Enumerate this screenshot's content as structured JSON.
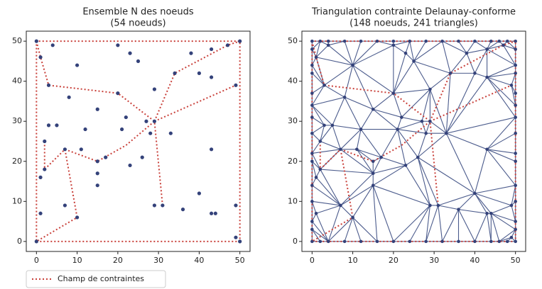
{
  "chart_data": [
    {
      "type": "scatter",
      "title": "Ensemble N des noeuds",
      "subtitle": "(54 noeuds)",
      "x": [
        0,
        50,
        0,
        50,
        1,
        4,
        3,
        10,
        20,
        23,
        25,
        2,
        2,
        1,
        1,
        3,
        5,
        8,
        7,
        11,
        12,
        15,
        15,
        15,
        15,
        17,
        20,
        21,
        22,
        23,
        26,
        27,
        28,
        29,
        29,
        29,
        31,
        33,
        34,
        36,
        38,
        40,
        40,
        43,
        43,
        43,
        43,
        44,
        47,
        49,
        49,
        49,
        10,
        7
      ],
      "y": [
        50,
        50,
        0,
        0,
        46,
        49,
        39,
        44,
        49,
        47,
        45,
        25,
        18,
        16,
        7,
        29,
        29,
        36,
        23,
        23,
        28,
        33,
        20,
        17,
        14,
        21,
        37,
        28,
        31,
        19,
        21,
        30,
        27,
        38,
        30,
        9,
        9,
        27,
        42,
        8,
        47,
        42,
        12,
        48,
        41,
        23,
        7,
        7,
        49,
        39,
        9,
        1,
        6,
        9
      ],
      "constraints": [
        {
          "x": [
            0,
            50,
            50,
            0,
            0
          ],
          "y": [
            0,
            0,
            50,
            50,
            0
          ]
        },
        {
          "x": [
            0,
            1,
            3,
            20,
            29,
            31
          ],
          "y": [
            50,
            46,
            39,
            37,
            30,
            9
          ]
        },
        {
          "x": [
            29,
            34,
            47,
            50
          ],
          "y": [
            30,
            42,
            49,
            50
          ]
        },
        {
          "x": [
            29,
            49
          ],
          "y": [
            30,
            39
          ]
        },
        {
          "x": [
            2,
            2,
            7,
            10,
            0
          ],
          "y": [
            25,
            18,
            23,
            6,
            0
          ]
        },
        {
          "x": [
            7,
            15,
            22,
            29
          ],
          "y": [
            23,
            20,
            24,
            30
          ]
        }
      ],
      "legend": "Champ de contraintes",
      "legend_loc": "lower left outside",
      "xlim": [
        -2.5,
        52.5
      ],
      "ylim": [
        -2.5,
        52.5
      ],
      "xticks": [
        0,
        10,
        20,
        30,
        40,
        50
      ],
      "yticks": [
        0,
        10,
        20,
        30,
        40,
        50
      ],
      "color": "#34427a",
      "constraint_color": "#c9403a",
      "triangulate": false
    },
    {
      "type": "scatter",
      "title": "Triangulation contrainte Delaunay-conforme",
      "subtitle": "(148 noeuds, 241 triangles)",
      "x": [
        0,
        50,
        0,
        50,
        1,
        4,
        3,
        10,
        20,
        23,
        25,
        2,
        2,
        1,
        1,
        3,
        5,
        8,
        7,
        11,
        12,
        15,
        15,
        15,
        15,
        17,
        20,
        21,
        22,
        23,
        26,
        27,
        28,
        29,
        29,
        29,
        31,
        33,
        34,
        36,
        38,
        40,
        40,
        43,
        43,
        43,
        43,
        44,
        47,
        49,
        49,
        49,
        10,
        7,
        2,
        4,
        8,
        12,
        16,
        20,
        24,
        28,
        32,
        36,
        40,
        44,
        46,
        48,
        2,
        4,
        8,
        12,
        16,
        20,
        24,
        28,
        32,
        36,
        40,
        44,
        46,
        48,
        0,
        0,
        0,
        0,
        0,
        0,
        0,
        0,
        0,
        0,
        0,
        0,
        0,
        50,
        50,
        50,
        50,
        50,
        50,
        50,
        50,
        50,
        50,
        50,
        50,
        50
      ],
      "y": [
        50,
        50,
        0,
        0,
        46,
        49,
        39,
        44,
        49,
        47,
        45,
        25,
        18,
        16,
        7,
        29,
        29,
        36,
        23,
        23,
        28,
        33,
        20,
        17,
        14,
        21,
        37,
        28,
        31,
        19,
        21,
        30,
        27,
        38,
        30,
        9,
        9,
        27,
        42,
        8,
        47,
        42,
        12,
        48,
        41,
        23,
        7,
        7,
        49,
        39,
        9,
        1,
        6,
        9,
        0,
        0,
        0,
        0,
        0,
        0,
        0,
        0,
        0,
        0,
        0,
        0,
        0,
        0,
        50,
        50,
        50,
        50,
        50,
        50,
        50,
        50,
        50,
        50,
        50,
        50,
        50,
        50,
        3,
        5,
        10,
        14,
        20,
        22,
        27,
        31,
        34,
        37,
        42,
        44,
        48,
        3,
        5,
        10,
        14,
        20,
        22,
        27,
        31,
        34,
        37,
        42,
        44,
        48
      ],
      "constraints": [
        {
          "x": [
            0,
            50,
            50,
            0,
            0
          ],
          "y": [
            0,
            0,
            50,
            50,
            0
          ]
        },
        {
          "x": [
            0,
            1,
            3,
            20,
            29,
            31
          ],
          "y": [
            50,
            46,
            39,
            37,
            30,
            9
          ]
        },
        {
          "x": [
            29,
            34,
            47,
            50
          ],
          "y": [
            30,
            42,
            49,
            50
          ]
        },
        {
          "x": [
            29,
            49
          ],
          "y": [
            30,
            39
          ]
        },
        {
          "x": [
            2,
            2,
            7,
            10,
            0
          ],
          "y": [
            25,
            18,
            23,
            6,
            0
          ]
        },
        {
          "x": [
            7,
            15,
            22,
            29
          ],
          "y": [
            23,
            20,
            24,
            30
          ]
        }
      ],
      "xlim": [
        -2.5,
        52.5
      ],
      "ylim": [
        -2.5,
        52.5
      ],
      "xticks": [
        0,
        10,
        20,
        30,
        40,
        50
      ],
      "yticks": [
        0,
        10,
        20,
        30,
        40,
        50
      ],
      "color": "#34427a",
      "constraint_color": "#c9403a",
      "mesh_color": "#4b5b8c",
      "triangulate": true
    }
  ]
}
